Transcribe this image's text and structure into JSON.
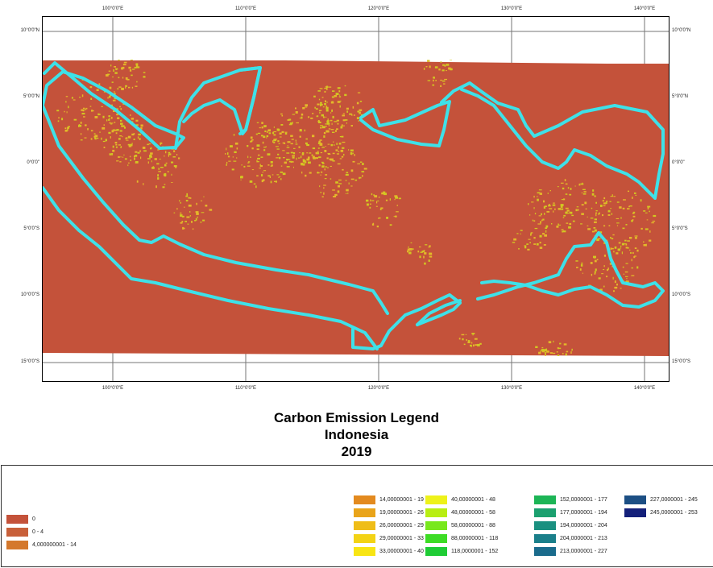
{
  "map": {
    "colors": {
      "background": "#c4523a",
      "coast_line": "#3ee1e8",
      "vegetation_a": "#d2c722",
      "vegetation_b": "#e4b82a"
    },
    "ticks": {
      "longitude": [
        "100°0'0\"E",
        "110°0'0\"E",
        "120°0'0\"E",
        "130°0'0\"E",
        "140°0'0\"E"
      ],
      "latitude": [
        "10°0'0\"N",
        "5°0'0\"N",
        "0°0'0\"",
        "5°0'0\"S",
        "10°0'0\"S",
        "15°0'0\"S"
      ]
    }
  },
  "title": {
    "line1": "Carbon Emission Legend",
    "line2": "Indonesia",
    "line3": "2019"
  },
  "legend": {
    "items": [
      {
        "label": "0",
        "color": "#c4523a"
      },
      {
        "label": "0 - 4",
        "color": "#c8603a"
      },
      {
        "label": "4,000000001 - 14",
        "color": "#d4782c"
      },
      {
        "label": "14,00000001 - 19",
        "color": "#e38a1f"
      },
      {
        "label": "19,00000001 - 26",
        "color": "#e9a41a"
      },
      {
        "label": "26,00000001 - 29",
        "color": "#efbd17"
      },
      {
        "label": "29,00000001 - 33",
        "color": "#f3d315"
      },
      {
        "label": "33,00000001 - 40",
        "color": "#f8e514"
      },
      {
        "label": "40,00000001 - 48",
        "color": "#eef21a"
      },
      {
        "label": "48,00000001 - 58",
        "color": "#b8ee12"
      },
      {
        "label": "58,00000001 - 88",
        "color": "#78e81c"
      },
      {
        "label": "88,00000001 - 118",
        "color": "#3ddc25"
      },
      {
        "label": "118,0000001 - 152",
        "color": "#1fcc35"
      },
      {
        "label": "152,0000001 - 177",
        "color": "#1cb556"
      },
      {
        "label": "177,0000001 - 194",
        "color": "#1ba06f"
      },
      {
        "label": "194,0000001 - 204",
        "color": "#1a9080"
      },
      {
        "label": "204,0000001 - 213",
        "color": "#1a7f8a"
      },
      {
        "label": "213,0000001 - 227",
        "color": "#1a6b8c"
      },
      {
        "label": "227,0000001 - 245",
        "color": "#1c4f84"
      },
      {
        "label": "245,0000001 - 253",
        "color": "#14207a"
      }
    ]
  }
}
